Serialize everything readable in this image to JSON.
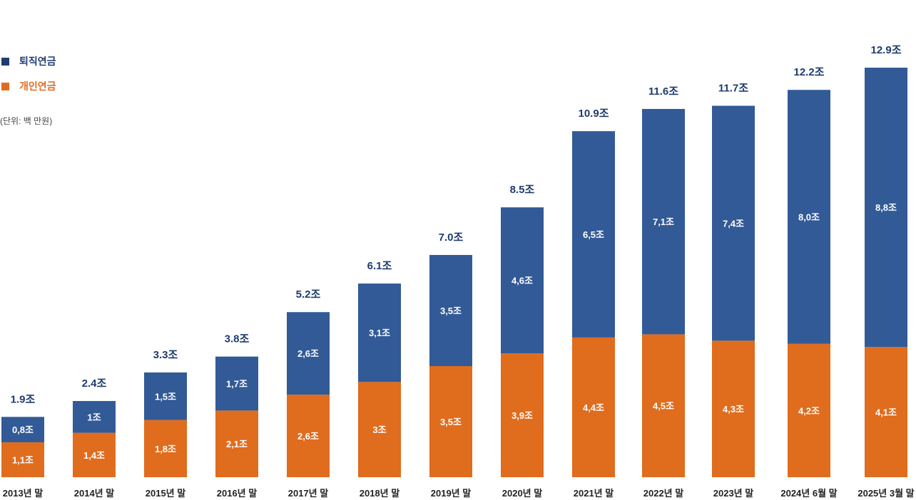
{
  "legend": {
    "retirement": {
      "label": "퇴직연금",
      "color": "#1f3c73"
    },
    "personal": {
      "label": "개인연금",
      "color": "#e06c1e"
    }
  },
  "unit_note": "(단위: 백 만원)",
  "chart_data": {
    "type": "bar",
    "stacked": true,
    "title": "",
    "xlabel": "",
    "ylabel": "",
    "unit_note": "(단위: 백 만원)",
    "legend_position": "top-left",
    "grid": false,
    "categories": [
      "2013년 말",
      "2014년 말",
      "2015년 말",
      "2016년 말",
      "2017년 말",
      "2018년 말",
      "2019년 말",
      "2020년 말",
      "2021년 말",
      "2022년 말",
      "2023년 말",
      "2024년 6월 말",
      "2025년 3월 말"
    ],
    "series": [
      {
        "name": "개인연금",
        "color": "#e06c1e",
        "values": [
          1.1,
          1.4,
          1.8,
          2.1,
          2.6,
          3,
          3.5,
          3.9,
          4.4,
          4.5,
          4.3,
          4.2,
          4.1
        ],
        "labels": [
          "1,1조",
          "1,4조",
          "1,8조",
          "2,1조",
          "2,6조",
          "3조",
          "3,5조",
          "3,9조",
          "4,4조",
          "4,5조",
          "4,3조",
          "4,2조",
          "4,1조"
        ]
      },
      {
        "name": "퇴직연금",
        "color": "#325a96",
        "values": [
          0.8,
          1,
          1.5,
          1.7,
          2.6,
          3.1,
          3.5,
          4.6,
          6.5,
          7.1,
          7.4,
          8.0,
          8.8
        ],
        "labels": [
          "0,8조",
          "1조",
          "1,5조",
          "1,7조",
          "2,6조",
          "3,1조",
          "3,5조",
          "4,6조",
          "6,5조",
          "7,1조",
          "7,4조",
          "8,0조",
          "8,8조"
        ]
      }
    ],
    "totals": [
      1.9,
      2.4,
      3.3,
      3.8,
      5.2,
      6.1,
      7.0,
      8.5,
      10.9,
      11.6,
      11.7,
      12.2,
      12.9
    ],
    "total_labels": [
      "1.9조",
      "2.4조",
      "3.3조",
      "3.8조",
      "5.2조",
      "6.1조",
      "7.0조",
      "8.5조",
      "10.9조",
      "11.6조",
      "11.7조",
      "12.2조",
      "12.9조"
    ],
    "ylim": [
      0,
      12.9
    ]
  }
}
